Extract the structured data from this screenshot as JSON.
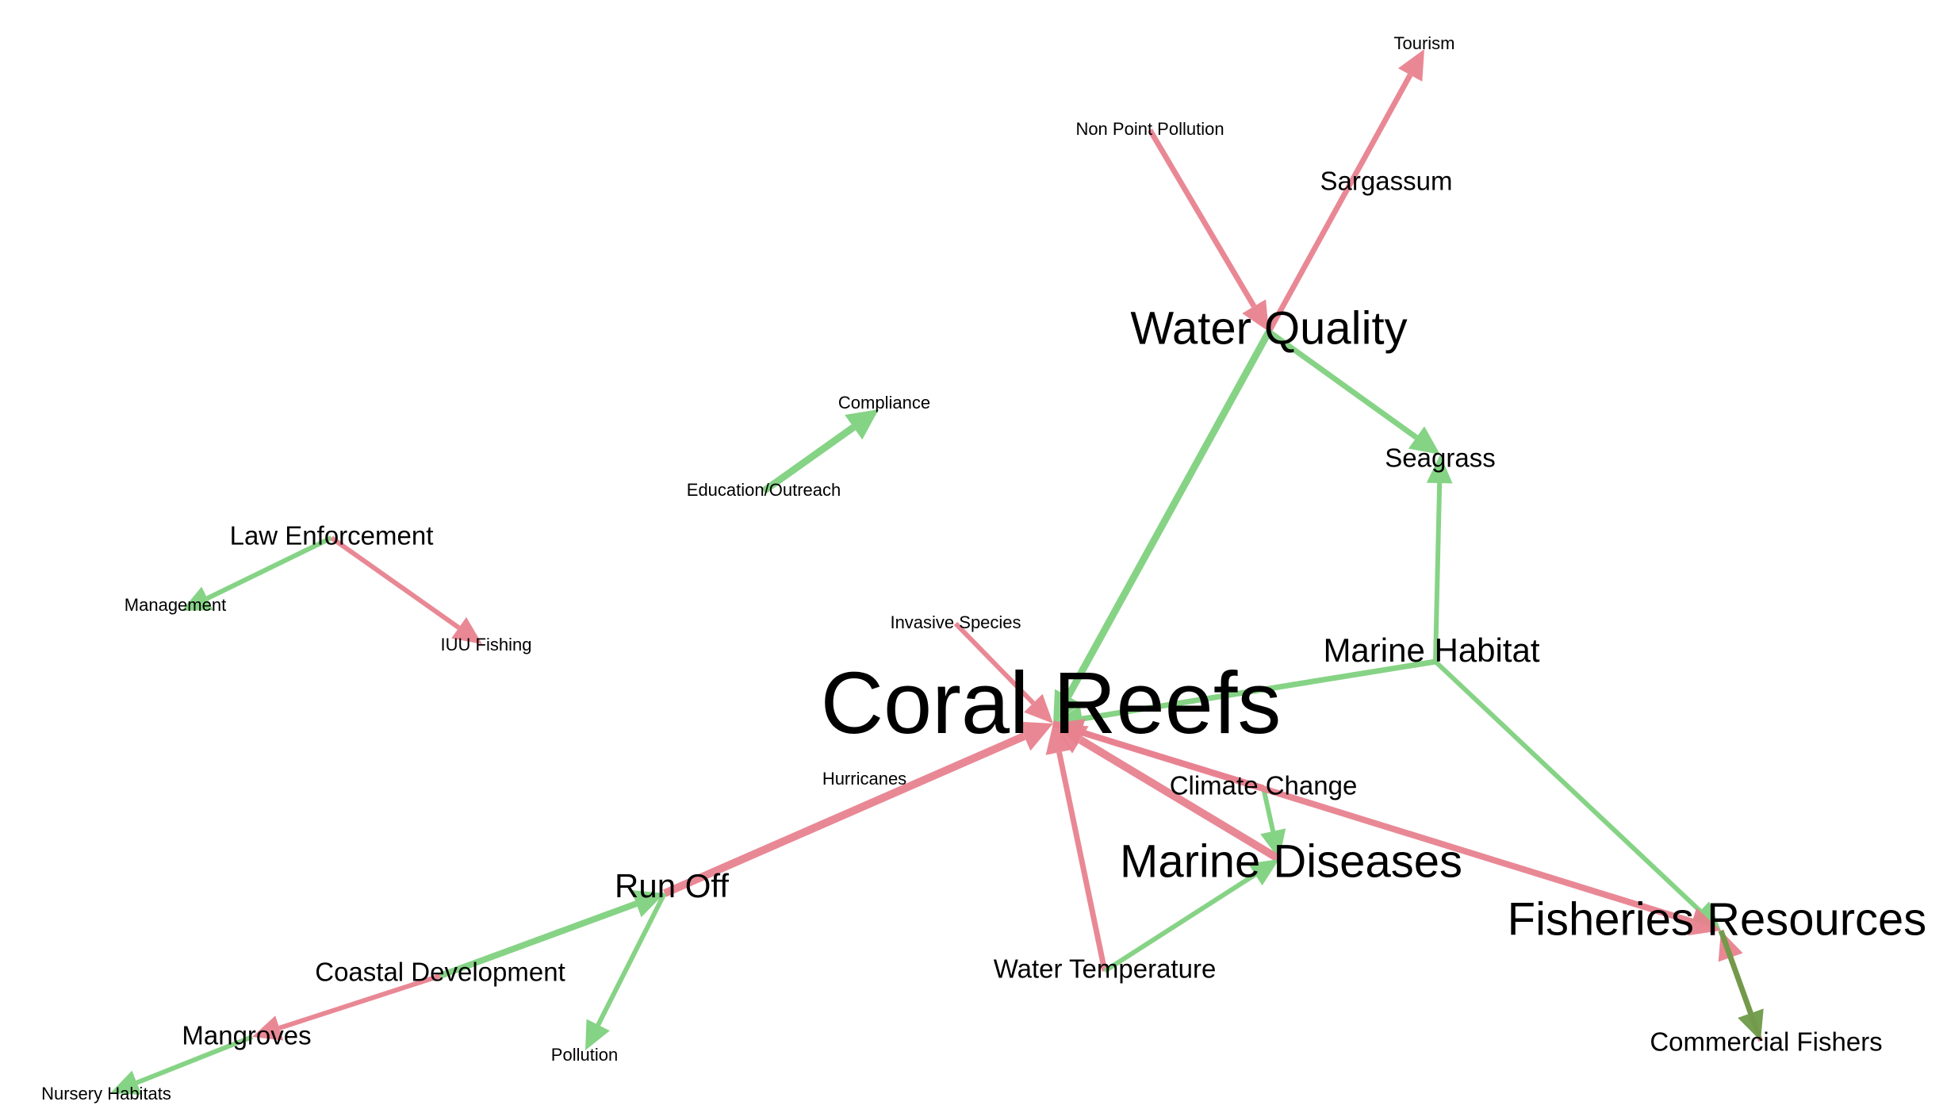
{
  "colors": {
    "positive": "#7fd17f",
    "negative": "#e8828f",
    "mixed": "#6e9a48"
  },
  "nodes": [
    {
      "id": "coral-reefs",
      "label": "Coral Reefs"
    },
    {
      "id": "water-quality",
      "label": "Water Quality"
    },
    {
      "id": "marine-diseases",
      "label": "Marine Diseases"
    },
    {
      "id": "fisheries-resources",
      "label": "Fisheries Resources"
    },
    {
      "id": "tourism",
      "label": "Tourism"
    },
    {
      "id": "non-point-pollution",
      "label": "Non Point Pollution"
    },
    {
      "id": "sargassum",
      "label": "Sargassum"
    },
    {
      "id": "compliance",
      "label": "Compliance"
    },
    {
      "id": "education-outreach",
      "label": "Education/Outreach"
    },
    {
      "id": "seagrass",
      "label": "Seagrass"
    },
    {
      "id": "law-enforcement",
      "label": "Law Enforcement"
    },
    {
      "id": "management",
      "label": "Management"
    },
    {
      "id": "iuu-fishing",
      "label": "IUU Fishing"
    },
    {
      "id": "invasive-species",
      "label": "Invasive Species"
    },
    {
      "id": "marine-habitat",
      "label": "Marine Habitat"
    },
    {
      "id": "hurricanes",
      "label": "Hurricanes"
    },
    {
      "id": "climate-change",
      "label": "Climate Change"
    },
    {
      "id": "run-off",
      "label": "Run Off"
    },
    {
      "id": "coastal-development",
      "label": "Coastal Development"
    },
    {
      "id": "water-temperature",
      "label": "Water Temperature"
    },
    {
      "id": "mangroves",
      "label": "Mangroves"
    },
    {
      "id": "pollution",
      "label": "Pollution"
    },
    {
      "id": "commercial-fishers",
      "label": "Commercial Fishers"
    },
    {
      "id": "nursery-habitats",
      "label": "Nursery Habitats"
    }
  ],
  "edges": [
    {
      "from": "non-point-pollution",
      "to": "water-quality",
      "sign": "negative"
    },
    {
      "from": "water-quality",
      "to": "tourism",
      "sign": "negative"
    },
    {
      "from": "water-quality",
      "to": "coral-reefs",
      "sign": "positive"
    },
    {
      "from": "water-quality",
      "to": "seagrass",
      "sign": "positive"
    },
    {
      "from": "education-outreach",
      "to": "compliance",
      "sign": "positive"
    },
    {
      "from": "law-enforcement",
      "to": "management",
      "sign": "positive"
    },
    {
      "from": "law-enforcement",
      "to": "iuu-fishing",
      "sign": "negative"
    },
    {
      "from": "invasive-species",
      "to": "coral-reefs",
      "sign": "negative"
    },
    {
      "from": "marine-habitat",
      "to": "coral-reefs",
      "sign": "positive"
    },
    {
      "from": "marine-habitat",
      "to": "seagrass",
      "sign": "positive"
    },
    {
      "from": "marine-habitat",
      "to": "fisheries-resources",
      "sign": "positive"
    },
    {
      "from": "climate-change",
      "to": "coral-reefs",
      "sign": "negative"
    },
    {
      "from": "climate-change",
      "to": "marine-diseases",
      "sign": "positive"
    },
    {
      "from": "marine-diseases",
      "to": "coral-reefs",
      "sign": "negative"
    },
    {
      "from": "run-off",
      "to": "coral-reefs",
      "sign": "negative"
    },
    {
      "from": "water-temperature",
      "to": "coral-reefs",
      "sign": "negative"
    },
    {
      "from": "water-temperature",
      "to": "marine-diseases",
      "sign": "positive"
    },
    {
      "from": "coral-reefs",
      "to": "fisheries-resources",
      "sign": "negative"
    },
    {
      "from": "coastal-development",
      "to": "run-off",
      "sign": "positive"
    },
    {
      "from": "run-off",
      "to": "pollution",
      "sign": "positive"
    },
    {
      "from": "coastal-development",
      "to": "mangroves",
      "sign": "negative"
    },
    {
      "from": "mangroves",
      "to": "nursery-habitats",
      "sign": "positive"
    },
    {
      "from": "commercial-fishers",
      "to": "fisheries-resources",
      "sign": "negative"
    },
    {
      "from": "fisheries-resources",
      "to": "commercial-fishers",
      "sign": "mixed"
    }
  ]
}
